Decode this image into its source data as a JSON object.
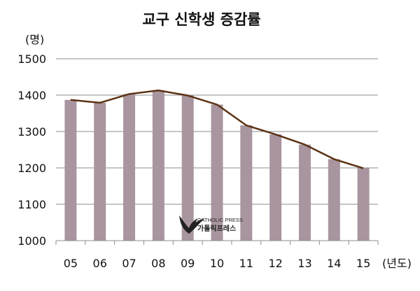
{
  "chart_data": {
    "type": "bar",
    "title": "교구 신학생 증감률",
    "y_unit": "(명)",
    "x_unit": "(년도)",
    "categories": [
      "05",
      "06",
      "07",
      "08",
      "09",
      "10",
      "11",
      "12",
      "13",
      "14",
      "15"
    ],
    "series": [
      {
        "values": [
          1387,
          1379,
          1403,
          1413,
          1399,
          1374,
          1317,
          1292,
          1264,
          1224,
          1199
        ],
        "type": "bar"
      },
      {
        "values": [
          1387,
          1379,
          1403,
          1413,
          1399,
          1374,
          1317,
          1292,
          1264,
          1224,
          1199
        ],
        "type": "line"
      }
    ],
    "ylim": [
      1000,
      1500
    ],
    "yticks": [
      1000,
      1100,
      1200,
      1300,
      1400,
      1500
    ],
    "grid": true,
    "bar_color": "#a9959f",
    "line_color": "#5b3214"
  },
  "watermark": {
    "line1": "CATHOLIC PRESS",
    "line2": "가톨릭프레스",
    "icon": "dove-icon"
  }
}
